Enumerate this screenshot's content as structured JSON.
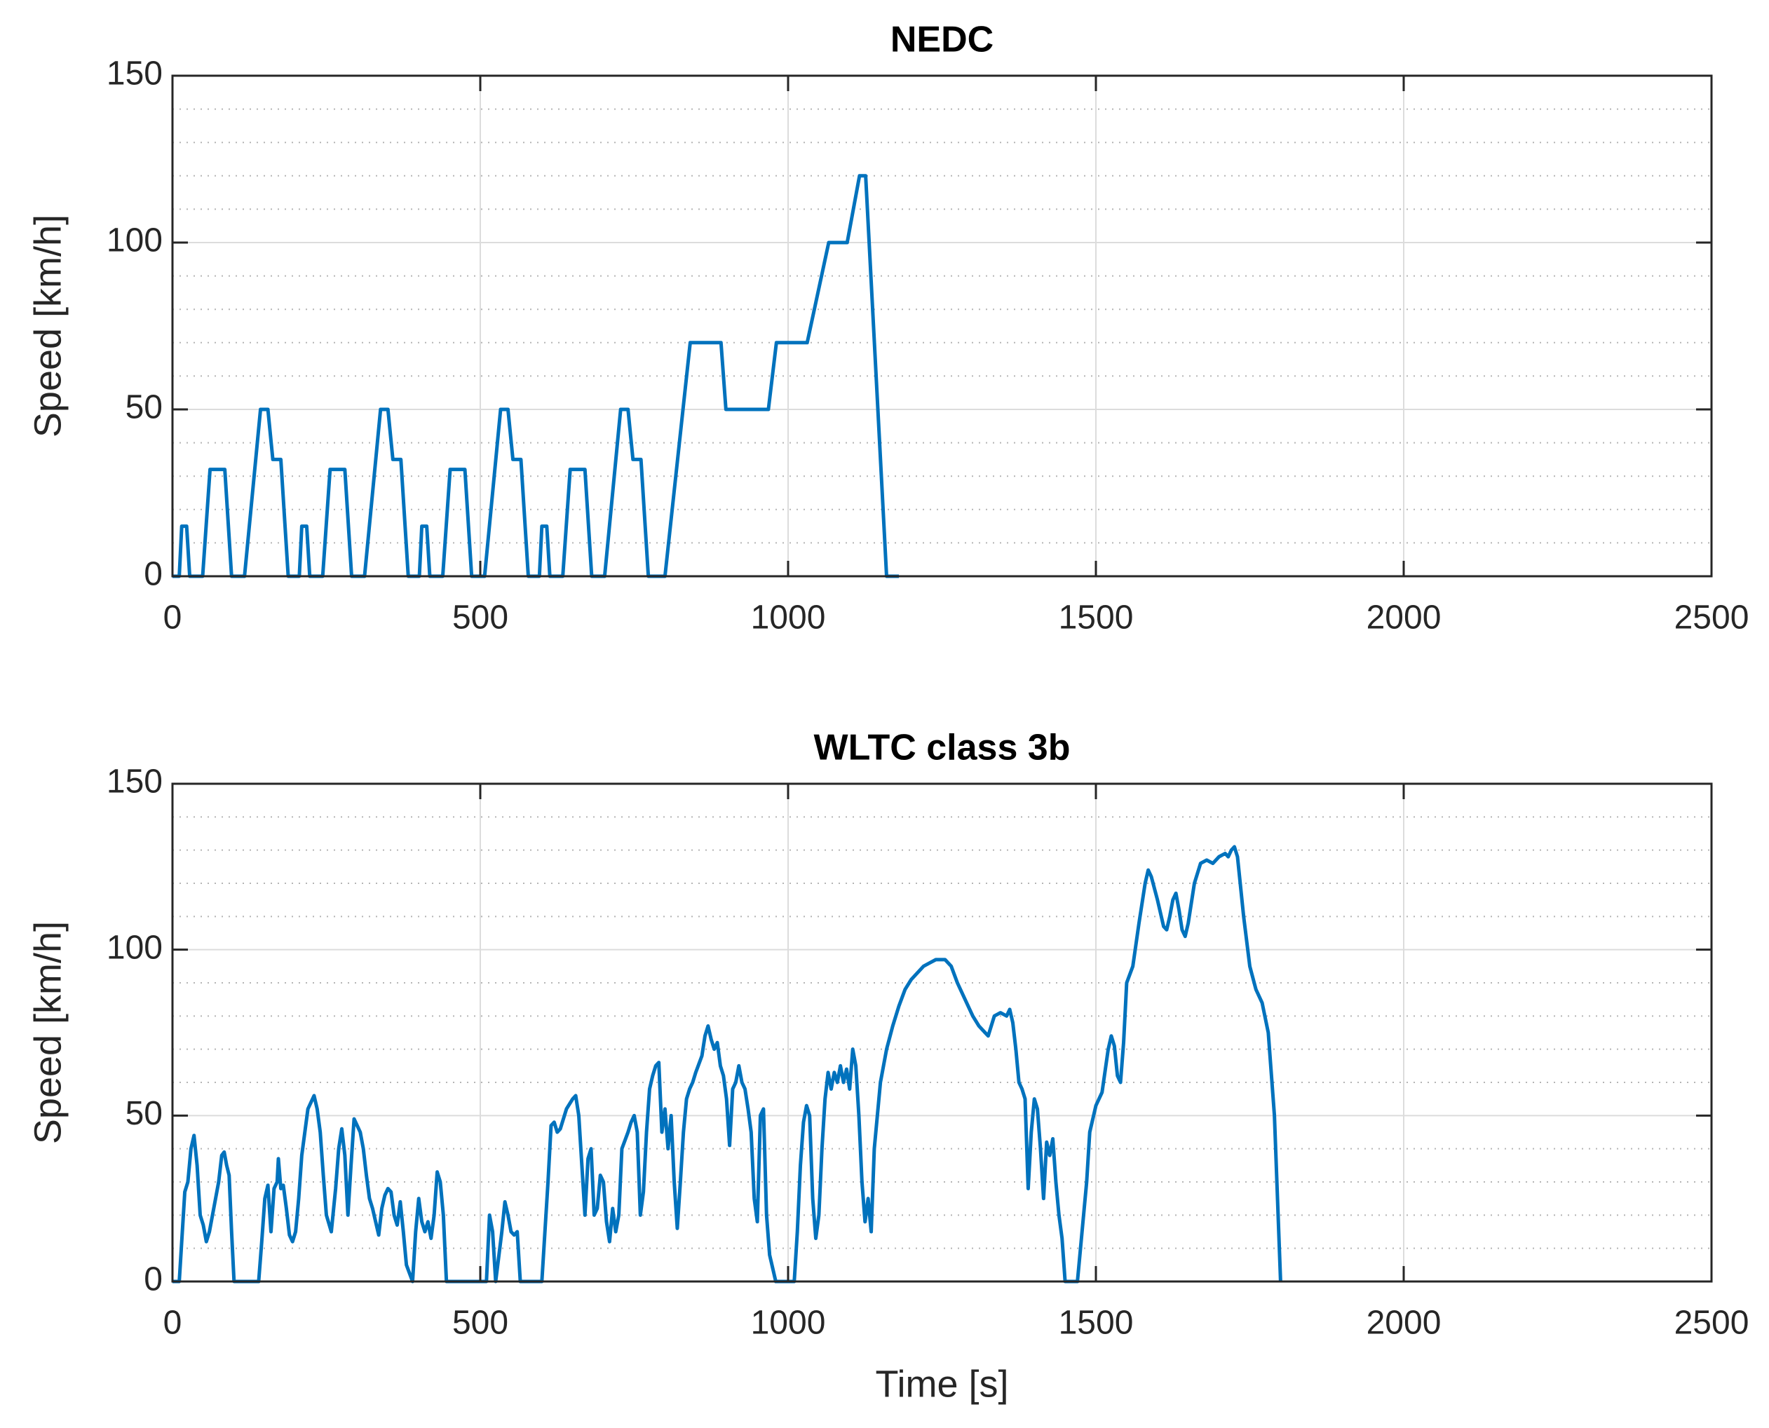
{
  "chart_data": [
    {
      "type": "line",
      "title": "NEDC",
      "ylabel": "Speed [km/h]",
      "xlim": [
        0,
        2500
      ],
      "xticks": [
        0,
        500,
        1000,
        1500,
        2000,
        2500
      ],
      "ylim": [
        0,
        150
      ],
      "yticks": [
        0,
        50,
        100,
        150
      ],
      "yminorticks": [
        10,
        20,
        30,
        40,
        60,
        70,
        80,
        90,
        110,
        120,
        130,
        140
      ],
      "grid": true,
      "minor_grid": true,
      "series": [
        {
          "name": "NEDC",
          "color": "#0072BD",
          "x": [
            0,
            11,
            15,
            23,
            28,
            49,
            61,
            85,
            96,
            117,
            143,
            155,
            163,
            176,
            188,
            195,
            206,
            210,
            218,
            223,
            244,
            256,
            280,
            291,
            312,
            338,
            350,
            358,
            371,
            383,
            390,
            401,
            405,
            413,
            418,
            439,
            451,
            475,
            486,
            507,
            533,
            545,
            553,
            566,
            578,
            585,
            596,
            600,
            608,
            613,
            634,
            646,
            670,
            681,
            702,
            728,
            740,
            748,
            761,
            773,
            780,
            800,
            841,
            891,
            899,
            968,
            981,
            1031,
            1066,
            1096,
            1116,
            1126,
            1160,
            1180
          ],
          "values": [
            0,
            0,
            15,
            15,
            0,
            0,
            32,
            32,
            0,
            0,
            50,
            50,
            35,
            35,
            0,
            0,
            0,
            15,
            15,
            0,
            0,
            32,
            32,
            0,
            0,
            50,
            50,
            35,
            35,
            0,
            0,
            0,
            15,
            15,
            0,
            0,
            32,
            32,
            0,
            0,
            50,
            50,
            35,
            35,
            0,
            0,
            0,
            15,
            15,
            0,
            0,
            32,
            32,
            0,
            0,
            50,
            50,
            35,
            35,
            0,
            0,
            0,
            70,
            70,
            50,
            50,
            70,
            70,
            100,
            100,
            120,
            120,
            0,
            0
          ]
        }
      ]
    },
    {
      "type": "line",
      "title": "WLTC class 3b",
      "xlabel": "Time [s]",
      "ylabel": "Speed [km/h]",
      "xlim": [
        0,
        2500
      ],
      "xticks": [
        0,
        500,
        1000,
        1500,
        2000,
        2500
      ],
      "ylim": [
        0,
        150
      ],
      "yticks": [
        0,
        50,
        100,
        150
      ],
      "yminorticks": [
        10,
        20,
        30,
        40,
        60,
        70,
        80,
        90,
        110,
        120,
        130,
        140
      ],
      "grid": true,
      "minor_grid": true,
      "series": [
        {
          "name": "WLTC class 3b",
          "color": "#0072BD",
          "x": [
            0,
            11,
            15,
            20,
            25,
            30,
            35,
            40,
            45,
            50,
            55,
            60,
            65,
            70,
            75,
            80,
            84,
            88,
            92,
            96,
            100,
            140,
            145,
            150,
            155,
            160,
            165,
            170,
            172,
            176,
            180,
            185,
            190,
            195,
            200,
            205,
            210,
            215,
            220,
            230,
            235,
            240,
            245,
            250,
            258,
            265,
            270,
            275,
            280,
            285,
            290,
            295,
            300,
            305,
            310,
            315,
            320,
            325,
            330,
            335,
            340,
            345,
            350,
            355,
            360,
            365,
            370,
            375,
            380,
            390,
            395,
            400,
            405,
            410,
            415,
            420,
            425,
            430,
            435,
            440,
            445,
            510,
            515,
            520,
            525,
            535,
            540,
            545,
            550,
            555,
            560,
            565,
            600,
            605,
            610,
            615,
            620,
            625,
            630,
            640,
            650,
            655,
            660,
            665,
            670,
            675,
            680,
            685,
            690,
            695,
            700,
            705,
            710,
            715,
            720,
            725,
            730,
            740,
            745,
            750,
            755,
            760,
            765,
            770,
            775,
            780,
            785,
            790,
            795,
            800,
            805,
            810,
            815,
            820,
            825,
            830,
            835,
            840,
            845,
            850,
            860,
            865,
            870,
            875,
            880,
            885,
            890,
            895,
            900,
            905,
            910,
            915,
            920,
            925,
            930,
            935,
            940,
            945,
            950,
            955,
            960,
            965,
            970,
            980,
            1010,
            1015,
            1020,
            1025,
            1030,
            1035,
            1040,
            1045,
            1050,
            1055,
            1060,
            1065,
            1070,
            1075,
            1080,
            1085,
            1090,
            1095,
            1100,
            1105,
            1110,
            1115,
            1120,
            1125,
            1130,
            1135,
            1140,
            1150,
            1160,
            1170,
            1180,
            1190,
            1200,
            1210,
            1220,
            1230,
            1240,
            1255,
            1265,
            1275,
            1290,
            1300,
            1310,
            1320,
            1325,
            1335,
            1345,
            1355,
            1360,
            1365,
            1370,
            1375,
            1380,
            1385,
            1390,
            1395,
            1400,
            1405,
            1410,
            1415,
            1420,
            1425,
            1430,
            1435,
            1440,
            1445,
            1450,
            1470,
            1475,
            1480,
            1485,
            1490,
            1500,
            1510,
            1520,
            1525,
            1530,
            1535,
            1540,
            1545,
            1550,
            1560,
            1570,
            1580,
            1585,
            1590,
            1600,
            1610,
            1615,
            1620,
            1625,
            1630,
            1635,
            1640,
            1645,
            1650,
            1660,
            1670,
            1680,
            1690,
            1700,
            1710,
            1715,
            1720,
            1725,
            1730,
            1740,
            1750,
            1760,
            1770,
            1780,
            1790,
            1795,
            1800
          ],
          "values": [
            0,
            0,
            12,
            27,
            30,
            40,
            44,
            35,
            20,
            17,
            12,
            15,
            20,
            25,
            30,
            38,
            39,
            35,
            32,
            15,
            0,
            0,
            12,
            25,
            29,
            15,
            28,
            30,
            37,
            28,
            29,
            22,
            14,
            12,
            15,
            25,
            38,
            45,
            52,
            56,
            52,
            45,
            32,
            20,
            15,
            28,
            40,
            46,
            38,
            20,
            35,
            49,
            47,
            45,
            40,
            32,
            25,
            22,
            18,
            14,
            22,
            26,
            28,
            27,
            20,
            17,
            24,
            15,
            5,
            0,
            15,
            25,
            18,
            15,
            18,
            13,
            20,
            33,
            30,
            20,
            0,
            0,
            20,
            15,
            0,
            15,
            24,
            20,
            15,
            14,
            15,
            0,
            0,
            15,
            30,
            47,
            48,
            45,
            46,
            52,
            55,
            56,
            50,
            35,
            20,
            37,
            40,
            20,
            22,
            32,
            30,
            18,
            12,
            22,
            15,
            20,
            40,
            45,
            48,
            50,
            45,
            20,
            27,
            45,
            58,
            62,
            65,
            66,
            45,
            52,
            40,
            50,
            30,
            16,
            30,
            45,
            55,
            58,
            60,
            63,
            68,
            74,
            77,
            73,
            70,
            72,
            65,
            62,
            55,
            41,
            58,
            60,
            65,
            60,
            58,
            52,
            45,
            25,
            18,
            50,
            52,
            20,
            8,
            0,
            0,
            15,
            35,
            48,
            53,
            50,
            25,
            13,
            20,
            40,
            55,
            63,
            58,
            63,
            60,
            65,
            60,
            64,
            58,
            70,
            65,
            50,
            30,
            18,
            25,
            15,
            40,
            60,
            70,
            77,
            83,
            88,
            91,
            93,
            95,
            96,
            97,
            97,
            95,
            90,
            84,
            80,
            77,
            75,
            74,
            80,
            81,
            80,
            82,
            78,
            70,
            60,
            58,
            55,
            28,
            45,
            55,
            52,
            40,
            25,
            42,
            38,
            43,
            30,
            20,
            13,
            0,
            0,
            10,
            20,
            30,
            45,
            53,
            57,
            70,
            74,
            71,
            62,
            60,
            72,
            90,
            95,
            108,
            120,
            124,
            122,
            115,
            107,
            106,
            110,
            115,
            117,
            112,
            106,
            104,
            108,
            120,
            126,
            127,
            126,
            128,
            129,
            128,
            130,
            131,
            128,
            110,
            95,
            88,
            84,
            75,
            50,
            25,
            0
          ]
        }
      ]
    }
  ]
}
